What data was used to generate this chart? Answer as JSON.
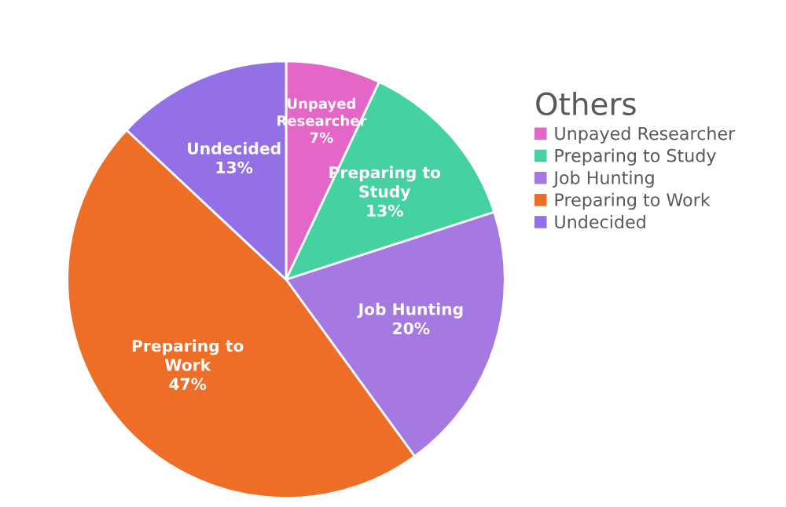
{
  "chart_data": {
    "type": "pie",
    "legend_title": "Others",
    "legend": "right",
    "categories": [
      "Unpayed Researcher",
      "Preparing to Study",
      "Job Hunting",
      "Preparing to Work",
      "Undecided"
    ],
    "values": [
      7,
      13,
      20,
      47,
      13
    ],
    "value_labels": [
      "7%",
      "13%",
      "20%",
      "47%",
      "13%"
    ],
    "colors": [
      "#e466c6",
      "#45d1a0",
      "#a578e2",
      "#ee6e28",
      "#9370e6"
    ]
  }
}
